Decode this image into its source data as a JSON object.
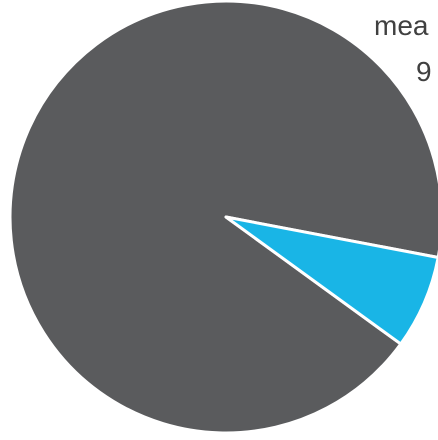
{
  "chart_data": {
    "type": "pie",
    "title": "",
    "labels_visible": [
      "mea",
      "9"
    ],
    "slices": [
      {
        "label": "",
        "value": 93,
        "color": "#5a5b5d"
      },
      {
        "label": "",
        "value": 7,
        "color": "#19b5e6"
      }
    ],
    "start_angle_deg": 36,
    "slice_border_color": "#ffffff",
    "legend": "none"
  }
}
